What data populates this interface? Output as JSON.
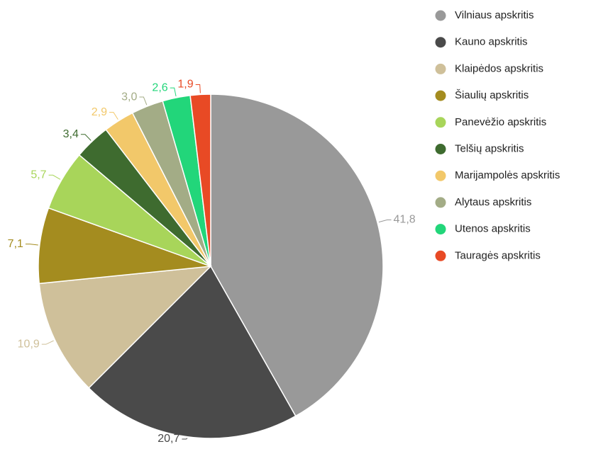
{
  "chart_data": {
    "type": "pie",
    "categories": [
      "Vilniaus apskritis",
      "Kauno apskritis",
      "Klaipėdos apskritis",
      "Šiaulių apskritis",
      "Panevėžio apskritis",
      "Telšių apskritis",
      "Marijampolės apskritis",
      "Alytaus apskritis",
      "Utenos apskritis",
      "Tauragės apskritis"
    ],
    "values": [
      41.8,
      20.7,
      10.9,
      7.1,
      5.7,
      3.4,
      2.9,
      3.0,
      2.6,
      1.9
    ],
    "value_labels": [
      "41,8",
      "20,7",
      "10,9",
      "7,1",
      "5,7",
      "3,4",
      "2,9",
      "3,0",
      "2,6",
      "1,9"
    ],
    "colors": [
      "#999999",
      "#4a4a4a",
      "#cfc09a",
      "#a48c1f",
      "#a8d55a",
      "#3e6b2f",
      "#f2c86a",
      "#a3ac86",
      "#22d67a",
      "#e84a25"
    ]
  }
}
